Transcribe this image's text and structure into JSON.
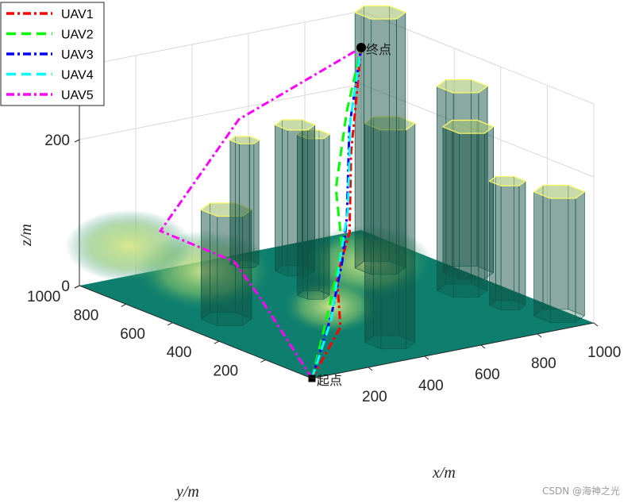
{
  "chart_data": {
    "type": "line",
    "subtype": "3d-path-over-terrain",
    "xlabel": "x/m",
    "ylabel": "y/m",
    "zlabel": "z/m",
    "xlim": [
      0,
      1000
    ],
    "ylim": [
      0,
      1000
    ],
    "zlim": [
      0,
      300
    ],
    "x_ticks": [
      "200",
      "400",
      "600",
      "800",
      "1000"
    ],
    "y_ticks": [
      "200",
      "400",
      "600",
      "800",
      "1000"
    ],
    "z_ticks": [
      "0",
      "200"
    ],
    "legend_position": "top-left",
    "grid": true,
    "start_label": "起点",
    "end_label": "终点",
    "start": [
      0,
      0,
      0
    ],
    "goal": [
      1000,
      1000,
      250
    ],
    "colors": {
      "UAV1": "#ff0000",
      "UAV2": "#00ff00",
      "UAV3": "#0000ff",
      "UAV4": "#00ffff",
      "UAV5": "#ff00ff",
      "terrain_low": "#0e7f6e",
      "terrain_high": "#d8e88a",
      "obstacle_edge": "#ffff66"
    },
    "series": [
      {
        "name": "UAV1",
        "style": "dash-dot",
        "points": [
          [
            0,
            0,
            0
          ],
          [
            200,
            120,
            40
          ],
          [
            320,
            280,
            80
          ],
          [
            480,
            420,
            110
          ],
          [
            700,
            680,
            170
          ],
          [
            1000,
            1000,
            250
          ]
        ]
      },
      {
        "name": "UAV2",
        "style": "dashed",
        "points": [
          [
            0,
            0,
            0
          ],
          [
            230,
            200,
            60
          ],
          [
            420,
            380,
            100
          ],
          [
            580,
            600,
            140
          ],
          [
            800,
            820,
            200
          ],
          [
            1000,
            1000,
            250
          ]
        ]
      },
      {
        "name": "UAV3",
        "style": "dash-dot",
        "points": [
          [
            0,
            0,
            0
          ],
          [
            210,
            170,
            50
          ],
          [
            380,
            330,
            90
          ],
          [
            520,
            480,
            120
          ],
          [
            760,
            760,
            190
          ],
          [
            1000,
            1000,
            250
          ]
        ]
      },
      {
        "name": "UAV4",
        "style": "dashed",
        "points": [
          [
            0,
            0,
            0
          ],
          [
            200,
            160,
            45
          ],
          [
            360,
            320,
            85
          ],
          [
            540,
            500,
            125
          ],
          [
            780,
            780,
            195
          ],
          [
            1000,
            1000,
            250
          ]
        ]
      },
      {
        "name": "UAV5",
        "style": "dash-dot",
        "points": [
          [
            0,
            0,
            0
          ],
          [
            60,
            300,
            70
          ],
          [
            120,
            480,
            90
          ],
          [
            40,
            700,
            110
          ],
          [
            500,
            920,
            200
          ],
          [
            1000,
            1000,
            250
          ]
        ]
      }
    ],
    "obstacles": [
      {
        "center": [
          400,
          150
        ],
        "radius": 70,
        "height": 300
      },
      {
        "center": [
          150,
          550
        ],
        "radius": 70,
        "height": 150
      },
      {
        "center": [
          500,
          600
        ],
        "radius": 45,
        "height": 220
      },
      {
        "center": [
          600,
          800
        ],
        "radius": 55,
        "height": 200
      },
      {
        "center": [
          520,
          920
        ],
        "radius": 40,
        "height": 170
      },
      {
        "center": [
          820,
          700
        ],
        "radius": 70,
        "height": 350
      },
      {
        "center": [
          880,
          420
        ],
        "radius": 70,
        "height": 280
      },
      {
        "center": [
          1000,
          540
        ],
        "radius": 70,
        "height": 200
      },
      {
        "center": [
          900,
          250
        ],
        "radius": 50,
        "height": 170
      },
      {
        "center": [
          960,
          100
        ],
        "radius": 70,
        "height": 170
      }
    ]
  },
  "watermark": "CSDN @海神之光"
}
